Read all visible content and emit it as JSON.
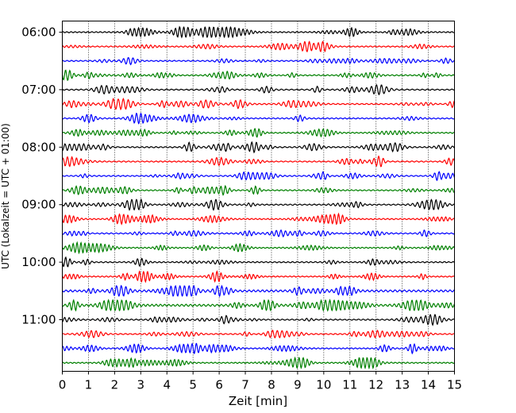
{
  "chart_data": {
    "type": "line",
    "title": "",
    "xlabel": "Zeit  [min]",
    "ylabel": "UTC (Lokalzeit = UTC + 01:00)",
    "xlim": [
      0,
      15
    ],
    "x_ticks": [
      "0",
      "1",
      "2",
      "3",
      "4",
      "5",
      "6",
      "7",
      "8",
      "9",
      "10",
      "11",
      "12",
      "13",
      "14",
      "15"
    ],
    "y_ticks": [
      "06:00",
      "07:00",
      "08:00",
      "09:00",
      "10:00",
      "11:00"
    ],
    "grid": "vertical-dotted",
    "trace_interval_minutes": 15,
    "trace_colors": [
      "#000000",
      "#ff0000",
      "#0000ff",
      "#008000"
    ],
    "traces": [
      {
        "start": "06:00"
      },
      {
        "start": "06:15"
      },
      {
        "start": "06:30"
      },
      {
        "start": "06:45"
      },
      {
        "start": "07:00"
      },
      {
        "start": "07:15"
      },
      {
        "start": "07:30"
      },
      {
        "start": "07:45"
      },
      {
        "start": "08:00"
      },
      {
        "start": "08:15"
      },
      {
        "start": "08:30"
      },
      {
        "start": "08:45"
      },
      {
        "start": "09:00"
      },
      {
        "start": "09:15"
      },
      {
        "start": "09:30"
      },
      {
        "start": "09:45"
      },
      {
        "start": "10:00"
      },
      {
        "start": "10:15"
      },
      {
        "start": "10:30"
      },
      {
        "start": "10:45"
      },
      {
        "start": "11:00"
      },
      {
        "start": "11:15"
      },
      {
        "start": "11:30"
      },
      {
        "start": "11:45"
      }
    ]
  }
}
